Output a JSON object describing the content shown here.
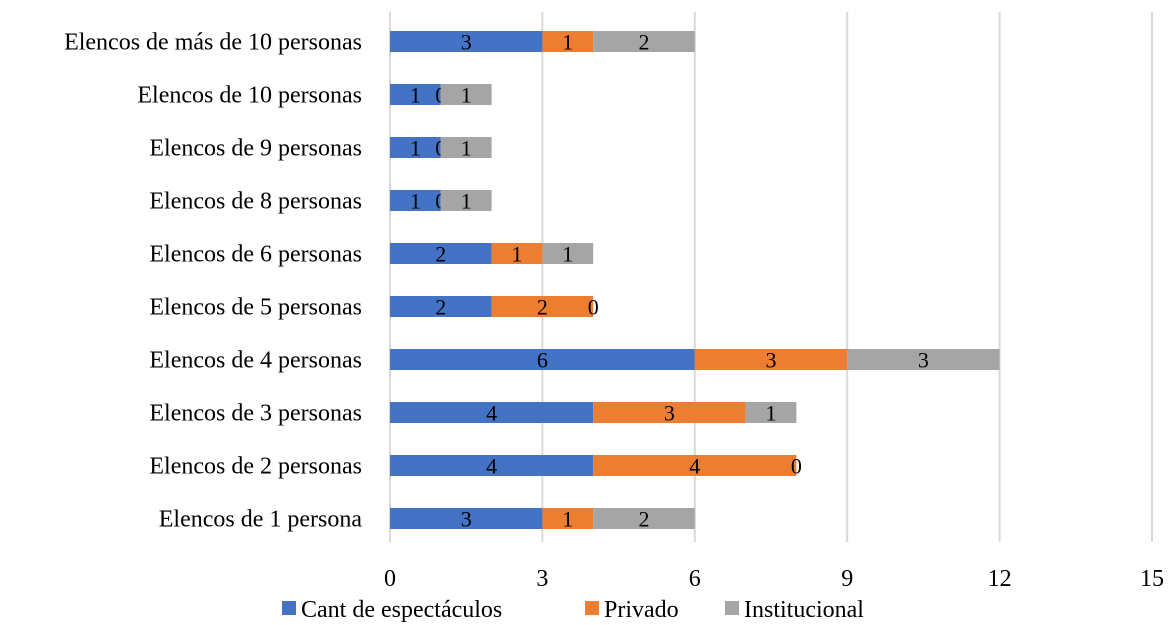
{
  "chart_data": {
    "type": "bar",
    "orientation": "horizontal",
    "stacked": true,
    "categories": [
      "Elencos de más de 10 personas",
      "Elencos de 10 personas",
      "Elencos de 9 personas",
      "Elencos de 8 personas",
      "Elencos de 6 personas",
      "Elencos de 5 personas",
      "Elencos de 4 personas",
      "Elencos de 3 personas",
      "Elencos de 2 personas",
      "Elencos de 1 persona"
    ],
    "series": [
      {
        "name": "Cant de espectáculos",
        "color": "#4472C4",
        "values": [
          3,
          1,
          1,
          1,
          2,
          2,
          6,
          4,
          4,
          3
        ]
      },
      {
        "name": "Privado",
        "color": "#ED7D31",
        "values": [
          1,
          0,
          0,
          0,
          1,
          2,
          3,
          3,
          4,
          1
        ]
      },
      {
        "name": "Institucional",
        "color": "#A5A5A5",
        "values": [
          2,
          1,
          1,
          1,
          1,
          0,
          3,
          1,
          0,
          2
        ]
      }
    ],
    "xticks": [
      "0",
      "3",
      "6",
      "9",
      "12",
      "15"
    ],
    "xlim": [
      0,
      15
    ],
    "grid": "vertical",
    "legend_position": "bottom",
    "title": "",
    "xlabel": "",
    "ylabel": ""
  }
}
